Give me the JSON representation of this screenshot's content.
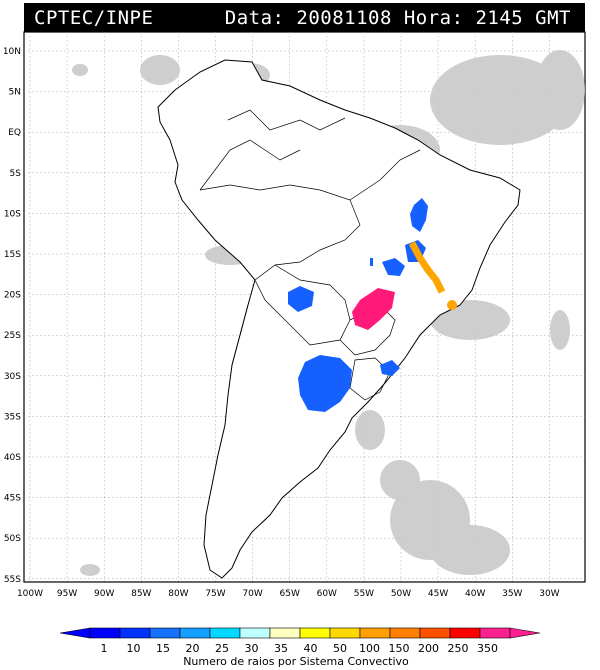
{
  "header": {
    "source": "CPTEC/INPE",
    "datetime": "Data: 20081108 Hora: 2145 GMT"
  },
  "map": {
    "lat_labels": [
      "10N",
      "5N",
      "EQ",
      "5S",
      "10S",
      "15S",
      "20S",
      "25S",
      "30S",
      "35S",
      "40S",
      "45S",
      "50S",
      "55S"
    ],
    "lon_labels": [
      "100W",
      "95W",
      "90W",
      "85W",
      "80W",
      "75W",
      "70W",
      "65W",
      "60W",
      "55W",
      "50W",
      "45W",
      "40W",
      "35W",
      "30W"
    ],
    "convective_systems": [
      {
        "name": "north-central-brazil",
        "color": "#1560ff"
      },
      {
        "name": "goias-small",
        "color": "#1560ff"
      },
      {
        "name": "minas-gerais",
        "color": "#ffa500"
      },
      {
        "name": "mato-grosso-sul",
        "color": "#ff1a7a"
      },
      {
        "name": "paraguay-chaco",
        "color": "#1560ff"
      },
      {
        "name": "argentina-uruguay",
        "color": "#1560ff"
      },
      {
        "name": "rio-grande-sul",
        "color": "#1560ff"
      }
    ]
  },
  "legend": {
    "title": "Numero de raios por Sistema Convectivo",
    "labels": [
      "1",
      "10",
      "15",
      "20",
      "25",
      "30",
      "35",
      "40",
      "50",
      "100",
      "150",
      "200",
      "250",
      "350"
    ],
    "colors": [
      "#0000ff",
      "#0033ff",
      "#1570ff",
      "#14a0ff",
      "#00d8ff",
      "#c0ffff",
      "#ffffc0",
      "#ffff00",
      "#ffd800",
      "#ffa000",
      "#ff8000",
      "#ff5000",
      "#ff0000",
      "#ff2090"
    ]
  }
}
